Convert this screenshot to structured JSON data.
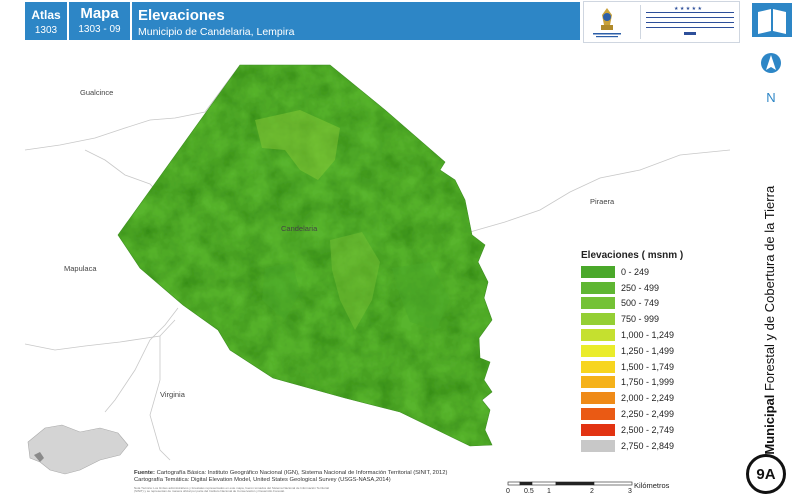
{
  "header": {
    "atlas_label": "Atlas",
    "atlas_number": "1303",
    "map_label": "Mapa",
    "map_number": "1303 - 09",
    "title": "Elevaciones",
    "subtitle": "Municipio de Candelaria, Lempira",
    "logo_government_text": "GOBIERNO DE LA REPÚBLICA DE HONDURAS",
    "logo_icf_text": "INSTITUTO NACIONAL DE CONSERVACIÓN Y DESARROLLO FORESTAL, ÁREAS PROTEGIDAS Y VIDA SILVESTRE",
    "logo_icf_abbr": "ICF",
    "book_icon": "book-icon"
  },
  "map": {
    "places": {
      "gualcince": "Gualcince",
      "candelaria": "Candelaria",
      "piraera": "Piraera",
      "mapulaca": "Mapulaca",
      "virginia": "Virginia"
    },
    "municipality_fill": "#58b52d"
  },
  "legend": {
    "title": "Elevaciones ( msnm )",
    "items": [
      {
        "label": "0 - 249",
        "color": "#4aa82a"
      },
      {
        "label": "250 - 499",
        "color": "#5fb632"
      },
      {
        "label": "500 - 749",
        "color": "#74c235"
      },
      {
        "label": "750 - 999",
        "color": "#94cf34"
      },
      {
        "label": "1,000 - 1,249",
        "color": "#c5e02f"
      },
      {
        "label": "1,250 - 1,499",
        "color": "#eaec2a"
      },
      {
        "label": "1,500 - 1,749",
        "color": "#f7d51f"
      },
      {
        "label": "1,750 - 1,999",
        "color": "#f5b21a"
      },
      {
        "label": "2,000 - 2,249",
        "color": "#ef8a17"
      },
      {
        "label": "2,250 - 2,499",
        "color": "#ea5a14"
      },
      {
        "label": "2,500 - 2,749",
        "color": "#e23312"
      },
      {
        "label": "2,750 - 2,849",
        "color": "#c8c8c8"
      }
    ]
  },
  "sources": {
    "label": "Fuente:",
    "line1": "Cartografía Básica: Instituto Geográfico Nacional (IGN), Sistema Nacional de Información Territorial (SINIT, 2012)",
    "line2": "Cartografía Temática: Digital Elevation Model, United States Geological Survey (USGS-NASA,2014)",
    "note": "Nota Técnica: Los límites administrativos y forestales representados en este mapa, fueron tomados del Sistema Nacional de Información Territorial (SINIT) y se representan de manera oficial por parte del Instituto Nacional de Conservación y Desarrollo Forestal."
  },
  "scale": {
    "ticks": [
      "0",
      "0.5",
      "1",
      "2",
      "3"
    ],
    "unit": "Kilómetros"
  },
  "side": {
    "north_label": "N",
    "vertical_bold": "Atlas Municipal",
    "vertical_rest": " Forestal y de Cobertura de la Tierra",
    "badge": "9A"
  }
}
